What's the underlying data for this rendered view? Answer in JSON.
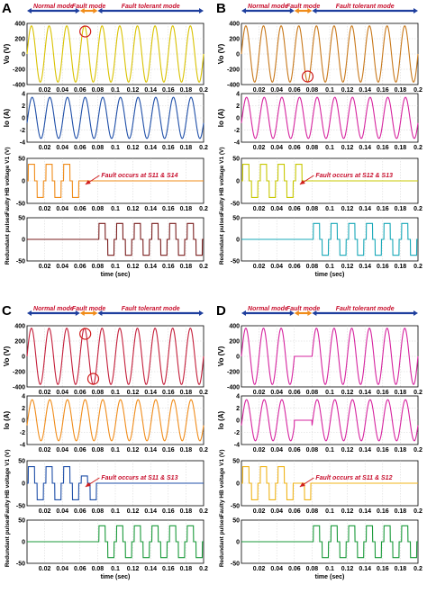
{
  "colors": {
    "mode_arrow_blue": "#1f3f9e",
    "mode_arrow_orange": "#f08c1a",
    "mode_text": "#c8102e",
    "fault_circle": "#d01c1c",
    "axes": "#000000",
    "grid": "#c8c8c8"
  },
  "panels": [
    {
      "letter": "A",
      "modes": {
        "normal": "Normal mode",
        "fault": "Fault mode",
        "tolerant": "Fault tolerant mode"
      },
      "fault_note": "Fault occurs at S11 & S14",
      "xlabel": "time (sec)",
      "charts": [
        {
          "type": "line",
          "ylabel": "Vo (V)",
          "color": "#d9c200",
          "kind": "vo",
          "fault": "spike-top",
          "ylim": [
            -400,
            400
          ],
          "yticks": [
            "400",
            "200",
            "0",
            "-200",
            "-400"
          ],
          "xticks": [
            "0.02",
            "0.04",
            "0.06",
            "0.08",
            "0.1",
            "0.12",
            "0.14",
            "0.16",
            "0.18",
            "0.2"
          ]
        },
        {
          "type": "line",
          "ylabel": "Io (A)",
          "color": "#1f4fa8",
          "kind": "io",
          "fault": "none",
          "ylim": [
            -4,
            4
          ],
          "yticks": [
            "4",
            "2",
            "0",
            "-2",
            "-4"
          ],
          "xticks": [
            "0.02",
            "0.04",
            "0.06",
            "0.08",
            "0.1",
            "0.12",
            "0.14",
            "0.16",
            "0.18",
            "0.2"
          ]
        },
        {
          "type": "line",
          "ylabel": "Faulty HB voltage V1 (V)",
          "color": "#f08c1a",
          "kind": "faulty",
          "fault": "s11s14",
          "ylim": [
            -50,
            50
          ],
          "yticks": [
            "50",
            "0",
            "-50"
          ],
          "xticks": [
            "0.02",
            "0.04",
            "0.06",
            "0.08",
            "0.1",
            "0.12",
            "0.14",
            "0.16",
            "0.18",
            "0.2"
          ]
        },
        {
          "type": "line",
          "ylabel": "Redundant pulses",
          "color": "#7a1e1e",
          "kind": "redundant",
          "fault": "none",
          "ylim": [
            -50,
            50
          ],
          "yticks": [
            "50",
            "0",
            "-50"
          ],
          "xticks": [
            "0.02",
            "0.04",
            "0.06",
            "0.08",
            "0.1",
            "0.12",
            "0.14",
            "0.16",
            "0.18",
            "0.2"
          ]
        }
      ]
    },
    {
      "letter": "B",
      "modes": {
        "normal": "Normal mode",
        "fault": "Fault mode",
        "tolerant": "Fault tolerant mode"
      },
      "fault_note": "Fault occurs at S12 & S13",
      "xlabel": "time (sec)",
      "charts": [
        {
          "type": "line",
          "ylabel": "Vo (V)",
          "color": "#c8781a",
          "kind": "vo",
          "fault": "spike-bottom",
          "ylim": [
            -400,
            400
          ],
          "yticks": [
            "400",
            "200",
            "0",
            "-200",
            "-400"
          ],
          "xticks": [
            "0.02",
            "0.04",
            "0.06",
            "0.08",
            "0.1",
            "0.12",
            "0.14",
            "0.16",
            "0.18",
            "0.2"
          ]
        },
        {
          "type": "line",
          "ylabel": "Io (A)",
          "color": "#d6249f",
          "kind": "io",
          "fault": "none",
          "ylim": [
            -4,
            4
          ],
          "yticks": [
            "4",
            "2",
            "0",
            "-2",
            "-4"
          ],
          "xticks": [
            "0.02",
            "0.04",
            "0.06",
            "0.08",
            "0.1",
            "0.12",
            "0.14",
            "0.16",
            "0.18",
            "0.2"
          ]
        },
        {
          "type": "line",
          "ylabel": "Faulty HB voltage V1 (V)",
          "color": "#c8c800",
          "kind": "faulty",
          "fault": "s12s13",
          "ylim": [
            -50,
            50
          ],
          "yticks": [
            "50",
            "0",
            "-50"
          ],
          "xticks": [
            "0.02",
            "0.04",
            "0.06",
            "0.08",
            "0.1",
            "0.12",
            "0.14",
            "0.16",
            "0.18",
            "0.2"
          ]
        },
        {
          "type": "line",
          "ylabel": "Redundant pulses",
          "color": "#18a8b8",
          "kind": "redundant",
          "fault": "none",
          "ylim": [
            -50,
            50
          ],
          "yticks": [
            "50",
            "0",
            "-50"
          ],
          "xticks": [
            "0.02",
            "0.04",
            "0.06",
            "0.08",
            "0.1",
            "0.12",
            "0.14",
            "0.16",
            "0.18",
            "0.2"
          ]
        }
      ]
    },
    {
      "letter": "C",
      "modes": {
        "normal": "Normal mode",
        "fault": "Fault mode",
        "tolerant": "Fault tolerant mode"
      },
      "fault_note": "Fault occurs at S11 & S13",
      "xlabel": "time (sec)",
      "charts": [
        {
          "type": "line",
          "ylabel": "Vo (V)",
          "color": "#c41e3a",
          "kind": "vo",
          "fault": "spike-both",
          "ylim": [
            -400,
            400
          ],
          "yticks": [
            "400",
            "200",
            "0",
            "-200",
            "-400"
          ],
          "xticks": [
            "0.02",
            "0.04",
            "0.06",
            "0.08",
            "0.1",
            "0.12",
            "0.14",
            "0.16",
            "0.18",
            "0.2"
          ]
        },
        {
          "type": "line",
          "ylabel": "Io (A)",
          "color": "#f08c1a",
          "kind": "io",
          "fault": "none",
          "ylim": [
            -4,
            4
          ],
          "yticks": [
            "4",
            "2",
            "0",
            "-2",
            "-4"
          ],
          "xticks": [
            "0.02",
            "0.04",
            "0.06",
            "0.08",
            "0.1",
            "0.12",
            "0.14",
            "0.16",
            "0.18",
            "0.2"
          ]
        },
        {
          "type": "line",
          "ylabel": "Faulty HB voltage V1 (V)",
          "color": "#1f4fa8",
          "kind": "faulty",
          "fault": "s11s13",
          "ylim": [
            -50,
            50
          ],
          "yticks": [
            "50",
            "0",
            "-50"
          ],
          "xticks": [
            "0.02",
            "0.04",
            "0.06",
            "0.08",
            "0.1",
            "0.12",
            "0.14",
            "0.16",
            "0.18",
            "0.2"
          ]
        },
        {
          "type": "line",
          "ylabel": "Redundant pulses",
          "color": "#1a9a3a",
          "kind": "redundant",
          "fault": "none",
          "ylim": [
            -50,
            50
          ],
          "yticks": [
            "50",
            "0",
            "-50"
          ],
          "xticks": [
            "0.02",
            "0.04",
            "0.06",
            "0.08",
            "0.1",
            "0.12",
            "0.14",
            "0.16",
            "0.18",
            "0.2"
          ]
        }
      ]
    },
    {
      "letter": "D",
      "modes": {
        "normal": "Normal mode",
        "fault": "Fault mode",
        "tolerant": "Fault tolerant mode"
      },
      "fault_note": "Fault occurs at S11 & S12",
      "xlabel": "time (sec)",
      "charts": [
        {
          "type": "line",
          "ylabel": "Vo (V)",
          "color": "#d6249f",
          "kind": "vo",
          "fault": "zero",
          "ylim": [
            -400,
            400
          ],
          "yticks": [
            "400",
            "200",
            "0",
            "-200",
            "-400"
          ],
          "xticks": [
            "0.02",
            "0.04",
            "0.06",
            "0.08",
            "0.1",
            "0.12",
            "0.14",
            "0.16",
            "0.18",
            "0.2"
          ]
        },
        {
          "type": "line",
          "ylabel": "Io (A)",
          "color": "#d6249f",
          "kind": "io",
          "fault": "zero",
          "ylim": [
            -4,
            4
          ],
          "yticks": [
            "4",
            "2",
            "0",
            "-2",
            "-4"
          ],
          "xticks": [
            "0.02",
            "0.04",
            "0.06",
            "0.08",
            "0.1",
            "0.12",
            "0.14",
            "0.16",
            "0.18",
            "0.2"
          ]
        },
        {
          "type": "line",
          "ylabel": "Faulty HB voltage V1 (V)",
          "color": "#f0b41a",
          "kind": "faulty",
          "fault": "s11s12",
          "ylim": [
            -50,
            50
          ],
          "yticks": [
            "50",
            "0",
            "-50"
          ],
          "xticks": [
            "0.02",
            "0.04",
            "0.06",
            "0.08",
            "0.1",
            "0.12",
            "0.14",
            "0.16",
            "0.18",
            "0.2"
          ]
        },
        {
          "type": "line",
          "ylabel": "Redundant pulses",
          "color": "#1a9a3a",
          "kind": "redundant",
          "fault": "none",
          "ylim": [
            -50,
            50
          ],
          "yticks": [
            "50",
            "0",
            "-50"
          ],
          "xticks": [
            "0.02",
            "0.04",
            "0.06",
            "0.08",
            "0.1",
            "0.12",
            "0.14",
            "0.16",
            "0.18",
            "0.2"
          ]
        }
      ]
    }
  ],
  "chart_data": {
    "type": "line",
    "x_range": [
      0,
      0.2
    ],
    "fundamental_hz": 50,
    "normal_mode_end_s": 0.06,
    "fault_mode_end_s": 0.08,
    "vo_amplitude_v": 330,
    "io_amplitude_a": 3,
    "hb_voltage_levels_v": [
      0,
      40,
      -40
    ],
    "redundant_start_s": 0.08
  }
}
